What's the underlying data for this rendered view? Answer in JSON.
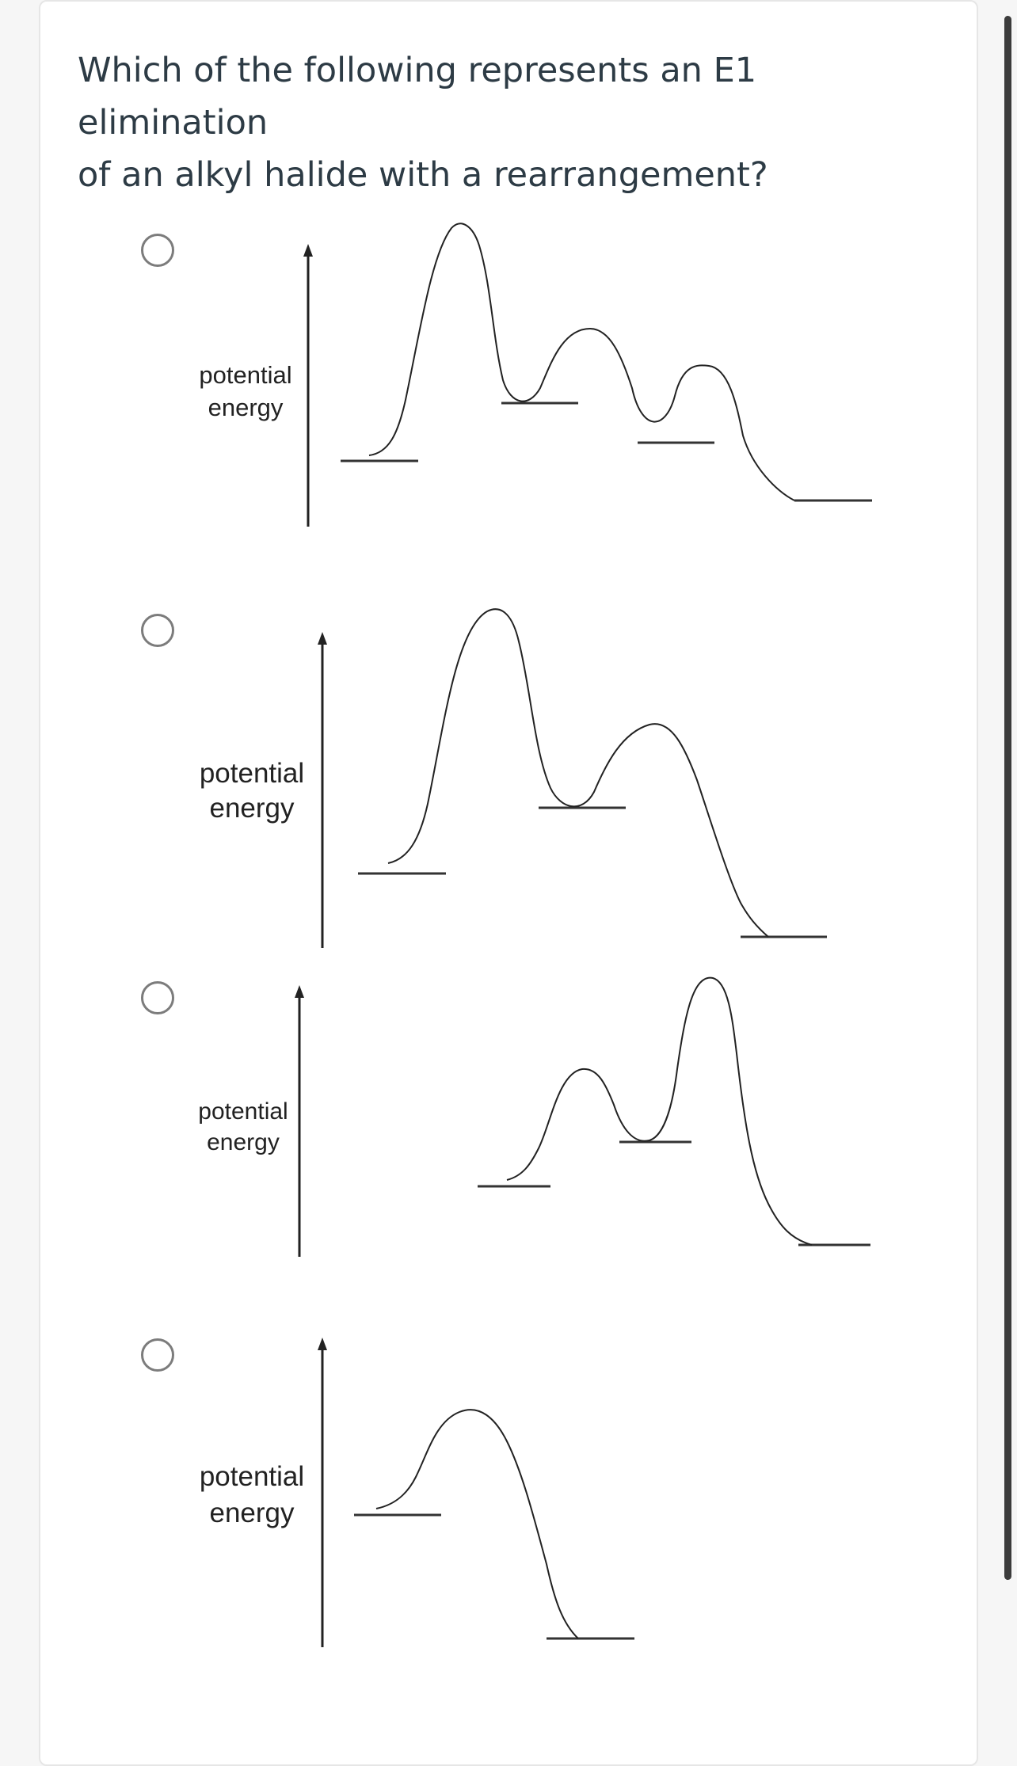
{
  "question": {
    "line1": "Which of the following represents an E1 elimination",
    "line2": "of an alkyl halide with a rearrangement?"
  },
  "options": [
    {
      "id": "a",
      "axis_label_line1": "potential",
      "axis_label_line2": "energy",
      "transition_states": 3,
      "intermediates": 2
    },
    {
      "id": "b",
      "axis_label_line1": "potential",
      "axis_label_line2": "energy",
      "transition_states": 2,
      "intermediates": 1
    },
    {
      "id": "c",
      "axis_label_line1": "potential",
      "axis_label_line2": "energy",
      "transition_states": 2,
      "intermediates": 1
    },
    {
      "id": "d",
      "axis_label_line1": "potential",
      "axis_label_line2": "energy",
      "transition_states": 1,
      "intermediates": 0
    }
  ],
  "colors": {
    "text": "#2d3b45",
    "radio_border": "#7c7c7c",
    "line": "#222222"
  }
}
